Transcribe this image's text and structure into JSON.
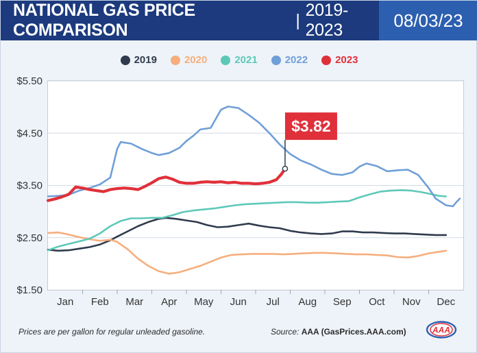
{
  "header": {
    "title": "NATIONAL GAS PRICE COMPARISON",
    "separator": "|",
    "years": "2019-2023",
    "date": "08/03/23"
  },
  "footnote": "Prices are per gallon for regular unleaded gasoline.",
  "source": {
    "label": "Source:",
    "value": "AAA (GasPrices.AAA.com)"
  },
  "logo_text": "AAA",
  "colors": {
    "title_bg": "#1c3a7d",
    "date_bg": "#2d5fb0",
    "2019": "#2f3b4c",
    "2020": "#f6ae7c",
    "2021": "#5ec8b8",
    "2022": "#6f9fd8",
    "2023": "#e0303a"
  },
  "chart_data": {
    "type": "line",
    "categories": [
      "Jan",
      "Feb",
      "Mar",
      "Apr",
      "May",
      "Jun",
      "Jul",
      "Aug",
      "Sep",
      "Oct",
      "Nov",
      "Dec"
    ],
    "ylim": [
      1.5,
      5.5
    ],
    "yticks": [
      "$5.50",
      "$4.50",
      "$3.50",
      "$2.50",
      "$1.50"
    ],
    "ytick_values": [
      5.5,
      4.5,
      3.5,
      2.5,
      1.5
    ],
    "grid": "horizontal",
    "legend_position": "top-center",
    "callout": {
      "label": "$3.82",
      "series": "2023",
      "x": 6.85,
      "y": 3.82
    },
    "series": [
      {
        "name": "2019",
        "color": "#2f3b4c",
        "points": [
          [
            0.0,
            2.27
          ],
          [
            0.3,
            2.25
          ],
          [
            0.6,
            2.26
          ],
          [
            0.9,
            2.29
          ],
          [
            1.2,
            2.32
          ],
          [
            1.5,
            2.37
          ],
          [
            1.8,
            2.45
          ],
          [
            2.0,
            2.52
          ],
          [
            2.3,
            2.62
          ],
          [
            2.6,
            2.72
          ],
          [
            2.9,
            2.8
          ],
          [
            3.2,
            2.86
          ],
          [
            3.4,
            2.88
          ],
          [
            3.7,
            2.86
          ],
          [
            4.0,
            2.83
          ],
          [
            4.3,
            2.8
          ],
          [
            4.6,
            2.74
          ],
          [
            4.9,
            2.7
          ],
          [
            5.2,
            2.71
          ],
          [
            5.5,
            2.74
          ],
          [
            5.8,
            2.77
          ],
          [
            6.1,
            2.73
          ],
          [
            6.4,
            2.7
          ],
          [
            6.7,
            2.68
          ],
          [
            7.0,
            2.63
          ],
          [
            7.3,
            2.6
          ],
          [
            7.6,
            2.58
          ],
          [
            7.9,
            2.57
          ],
          [
            8.2,
            2.58
          ],
          [
            8.5,
            2.62
          ],
          [
            8.8,
            2.62
          ],
          [
            9.1,
            2.6
          ],
          [
            9.4,
            2.6
          ],
          [
            9.7,
            2.59
          ],
          [
            10.0,
            2.58
          ],
          [
            10.3,
            2.58
          ],
          [
            10.6,
            2.57
          ],
          [
            10.9,
            2.56
          ],
          [
            11.2,
            2.55
          ],
          [
            11.5,
            2.55
          ]
        ]
      },
      {
        "name": "2020",
        "color": "#f6ae7c",
        "points": [
          [
            0.0,
            2.59
          ],
          [
            0.3,
            2.6
          ],
          [
            0.6,
            2.56
          ],
          [
            0.9,
            2.51
          ],
          [
            1.2,
            2.47
          ],
          [
            1.5,
            2.44
          ],
          [
            1.8,
            2.46
          ],
          [
            2.0,
            2.42
          ],
          [
            2.3,
            2.28
          ],
          [
            2.6,
            2.1
          ],
          [
            2.9,
            1.96
          ],
          [
            3.2,
            1.86
          ],
          [
            3.5,
            1.81
          ],
          [
            3.8,
            1.84
          ],
          [
            4.1,
            1.9
          ],
          [
            4.4,
            1.96
          ],
          [
            4.7,
            2.04
          ],
          [
            5.0,
            2.12
          ],
          [
            5.3,
            2.17
          ],
          [
            5.6,
            2.18
          ],
          [
            5.9,
            2.19
          ],
          [
            6.2,
            2.19
          ],
          [
            6.5,
            2.19
          ],
          [
            6.8,
            2.18
          ],
          [
            7.1,
            2.19
          ],
          [
            7.4,
            2.2
          ],
          [
            7.7,
            2.21
          ],
          [
            8.0,
            2.21
          ],
          [
            8.3,
            2.2
          ],
          [
            8.6,
            2.19
          ],
          [
            8.9,
            2.18
          ],
          [
            9.2,
            2.18
          ],
          [
            9.5,
            2.17
          ],
          [
            9.8,
            2.16
          ],
          [
            10.1,
            2.13
          ],
          [
            10.4,
            2.12
          ],
          [
            10.7,
            2.15
          ],
          [
            11.0,
            2.2
          ],
          [
            11.3,
            2.23
          ],
          [
            11.5,
            2.25
          ]
        ]
      },
      {
        "name": "2021",
        "color": "#5ec8b8",
        "points": [
          [
            0.0,
            2.26
          ],
          [
            0.3,
            2.33
          ],
          [
            0.6,
            2.38
          ],
          [
            0.9,
            2.43
          ],
          [
            1.2,
            2.48
          ],
          [
            1.5,
            2.58
          ],
          [
            1.8,
            2.72
          ],
          [
            2.1,
            2.82
          ],
          [
            2.4,
            2.87
          ],
          [
            2.7,
            2.87
          ],
          [
            3.0,
            2.88
          ],
          [
            3.3,
            2.88
          ],
          [
            3.6,
            2.93
          ],
          [
            3.9,
            2.99
          ],
          [
            4.2,
            3.02
          ],
          [
            4.5,
            3.04
          ],
          [
            4.8,
            3.06
          ],
          [
            5.1,
            3.09
          ],
          [
            5.4,
            3.12
          ],
          [
            5.7,
            3.14
          ],
          [
            6.0,
            3.15
          ],
          [
            6.3,
            3.16
          ],
          [
            6.6,
            3.17
          ],
          [
            6.9,
            3.18
          ],
          [
            7.2,
            3.18
          ],
          [
            7.5,
            3.17
          ],
          [
            7.8,
            3.17
          ],
          [
            8.1,
            3.18
          ],
          [
            8.4,
            3.19
          ],
          [
            8.7,
            3.2
          ],
          [
            9.0,
            3.27
          ],
          [
            9.3,
            3.33
          ],
          [
            9.6,
            3.38
          ],
          [
            9.9,
            3.4
          ],
          [
            10.2,
            3.41
          ],
          [
            10.5,
            3.4
          ],
          [
            10.8,
            3.37
          ],
          [
            11.1,
            3.33
          ],
          [
            11.3,
            3.3
          ],
          [
            11.5,
            3.29
          ]
        ]
      },
      {
        "name": "2022",
        "color": "#6f9fd8",
        "points": [
          [
            0.0,
            3.29
          ],
          [
            0.3,
            3.3
          ],
          [
            0.6,
            3.32
          ],
          [
            0.9,
            3.4
          ],
          [
            1.2,
            3.45
          ],
          [
            1.5,
            3.52
          ],
          [
            1.8,
            3.65
          ],
          [
            2.0,
            4.2
          ],
          [
            2.1,
            4.33
          ],
          [
            2.4,
            4.3
          ],
          [
            2.7,
            4.2
          ],
          [
            3.0,
            4.12
          ],
          [
            3.2,
            4.08
          ],
          [
            3.5,
            4.12
          ],
          [
            3.8,
            4.22
          ],
          [
            4.0,
            4.35
          ],
          [
            4.2,
            4.45
          ],
          [
            4.4,
            4.57
          ],
          [
            4.7,
            4.6
          ],
          [
            5.0,
            4.95
          ],
          [
            5.2,
            5.01
          ],
          [
            5.5,
            4.98
          ],
          [
            5.8,
            4.85
          ],
          [
            6.1,
            4.7
          ],
          [
            6.4,
            4.5
          ],
          [
            6.7,
            4.28
          ],
          [
            7.0,
            4.1
          ],
          [
            7.3,
            3.98
          ],
          [
            7.6,
            3.9
          ],
          [
            7.9,
            3.8
          ],
          [
            8.2,
            3.72
          ],
          [
            8.5,
            3.7
          ],
          [
            8.8,
            3.75
          ],
          [
            9.0,
            3.86
          ],
          [
            9.2,
            3.92
          ],
          [
            9.5,
            3.87
          ],
          [
            9.8,
            3.77
          ],
          [
            10.1,
            3.79
          ],
          [
            10.4,
            3.8
          ],
          [
            10.7,
            3.7
          ],
          [
            11.0,
            3.45
          ],
          [
            11.2,
            3.25
          ],
          [
            11.5,
            3.12
          ],
          [
            11.7,
            3.1
          ],
          [
            11.8,
            3.18
          ],
          [
            11.9,
            3.25
          ]
        ]
      },
      {
        "name": "2023",
        "color": "#e0303a",
        "points": [
          [
            0.0,
            3.21
          ],
          [
            0.2,
            3.24
          ],
          [
            0.4,
            3.28
          ],
          [
            0.6,
            3.33
          ],
          [
            0.8,
            3.47
          ],
          [
            1.0,
            3.45
          ],
          [
            1.2,
            3.42
          ],
          [
            1.4,
            3.4
          ],
          [
            1.6,
            3.38
          ],
          [
            1.8,
            3.42
          ],
          [
            2.0,
            3.44
          ],
          [
            2.2,
            3.45
          ],
          [
            2.4,
            3.44
          ],
          [
            2.6,
            3.42
          ],
          [
            2.8,
            3.48
          ],
          [
            3.0,
            3.55
          ],
          [
            3.2,
            3.63
          ],
          [
            3.4,
            3.66
          ],
          [
            3.6,
            3.62
          ],
          [
            3.8,
            3.56
          ],
          [
            4.0,
            3.54
          ],
          [
            4.2,
            3.54
          ],
          [
            4.4,
            3.56
          ],
          [
            4.6,
            3.57
          ],
          [
            4.8,
            3.56
          ],
          [
            5.0,
            3.57
          ],
          [
            5.2,
            3.55
          ],
          [
            5.4,
            3.56
          ],
          [
            5.6,
            3.54
          ],
          [
            5.8,
            3.54
          ],
          [
            6.0,
            3.53
          ],
          [
            6.2,
            3.54
          ],
          [
            6.4,
            3.56
          ],
          [
            6.6,
            3.61
          ],
          [
            6.75,
            3.72
          ],
          [
            6.85,
            3.82
          ]
        ]
      }
    ]
  }
}
